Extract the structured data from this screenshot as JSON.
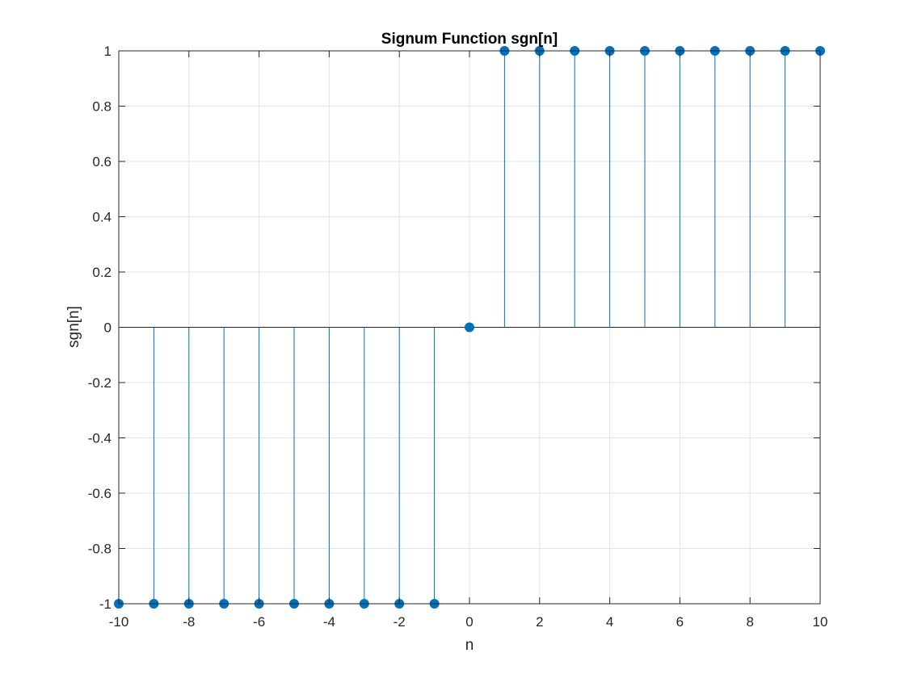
{
  "chart_data": {
    "type": "stem",
    "title": "Signum Function sgn[n]",
    "xlabel": "n",
    "ylabel": "sgn[n]",
    "xlim": [
      -10,
      10
    ],
    "ylim": [
      -1,
      1
    ],
    "grid": true,
    "x_ticks": [
      "-10",
      "-8",
      "-6",
      "-4",
      "-2",
      "0",
      "2",
      "4",
      "6",
      "8",
      "10"
    ],
    "y_ticks": [
      "-1",
      "-0.8",
      "-0.6",
      "-0.4",
      "-0.2",
      "0",
      "0.2",
      "0.4",
      "0.6",
      "0.8",
      "1"
    ],
    "series": [
      {
        "color": "#0072BD",
        "x": [
          -10,
          -9,
          -8,
          -7,
          -6,
          -5,
          -4,
          -3,
          -2,
          -1,
          0,
          1,
          2,
          3,
          4,
          5,
          6,
          7,
          8,
          9,
          10
        ],
        "values": [
          -1,
          -1,
          -1,
          -1,
          -1,
          -1,
          -1,
          -1,
          -1,
          -1,
          0,
          1,
          1,
          1,
          1,
          1,
          1,
          1,
          1,
          1,
          1
        ]
      }
    ]
  }
}
